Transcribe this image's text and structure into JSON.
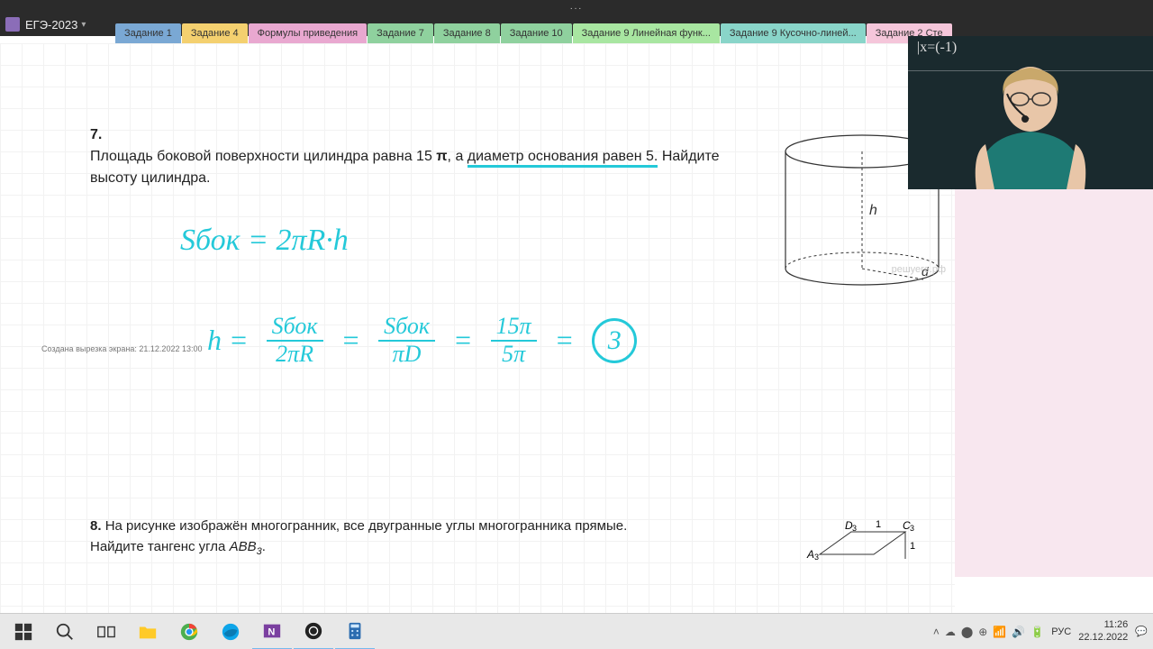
{
  "top": {
    "dots": "..."
  },
  "app": {
    "notebook_title": "ЕГЭ-2023",
    "caret": "▾"
  },
  "tabs": [
    {
      "label": "Задание 1",
      "bg": "#7aa8d4"
    },
    {
      "label": "Задание 4",
      "bg": "#f4d06f"
    },
    {
      "label": "Формулы приведения",
      "bg": "#e9a8d0"
    },
    {
      "label": "Задание 7",
      "bg": "#8fd19e"
    },
    {
      "label": "Задание 8",
      "bg": "#8fd19e"
    },
    {
      "label": "Задание 10",
      "bg": "#8fd19e"
    },
    {
      "label": "Задание 9 Линейная функ...",
      "bg": "#a8e6a1"
    },
    {
      "label": "Задание 9 Кусочно-линей...",
      "bg": "#89d5c9"
    },
    {
      "label": "Задание 2 Сте",
      "bg": "#f5c6da"
    }
  ],
  "problem7": {
    "num": "7.",
    "text_before": "Площадь боковой поверхности цилиндра равна 15",
    "pi": "π",
    "text_mid_pre_underline": ", а ",
    "underlined": "диаметр основания равен 5.",
    "text_after": " Найдите",
    "line2": "высоту цилиндра."
  },
  "cylinder": {
    "h_label": "h",
    "d_label": "d"
  },
  "watermark": "решуегэ.рф",
  "handwriting": {
    "formula1": "Sбок = 2πR·h",
    "h_eq": "h =",
    "frac1_top": "Sбок",
    "frac1_bot": "2πR",
    "eq": "=",
    "frac2_top": "Sбок",
    "frac2_bot": "πD",
    "frac3_top": "15π",
    "frac3_bot": "5π",
    "answer": "3",
    "color": "#24c9d9"
  },
  "timestamp": "Создана вырезка экрана: 21.12.2022 13:00",
  "problem8": {
    "num": "8.",
    "text1": "На рисунке изображён многогранник, все двугранные углы многогранника прямые.",
    "text2_pre": "Найдите тангенс угла ",
    "angle": "ABB",
    "angle_sub": "3",
    "text2_post": "."
  },
  "poly": {
    "d3": "D",
    "c3": "C",
    "a3": "A",
    "one_top": "1",
    "one_right": "1",
    "sub3": "3"
  },
  "webcam": {
    "chalk": "|x=(-1)"
  },
  "taskbar": {
    "lang": "РУС",
    "time": "11:26",
    "date": "22.12.2022"
  },
  "colors": {
    "header_bg": "#2b2b2b",
    "page_bg": "#ffffff",
    "pink_bg": "#f8e7ef",
    "grid": "#f2f2f2",
    "taskbar_bg": "#e8e8e8",
    "cyan": "#24c9d9"
  }
}
